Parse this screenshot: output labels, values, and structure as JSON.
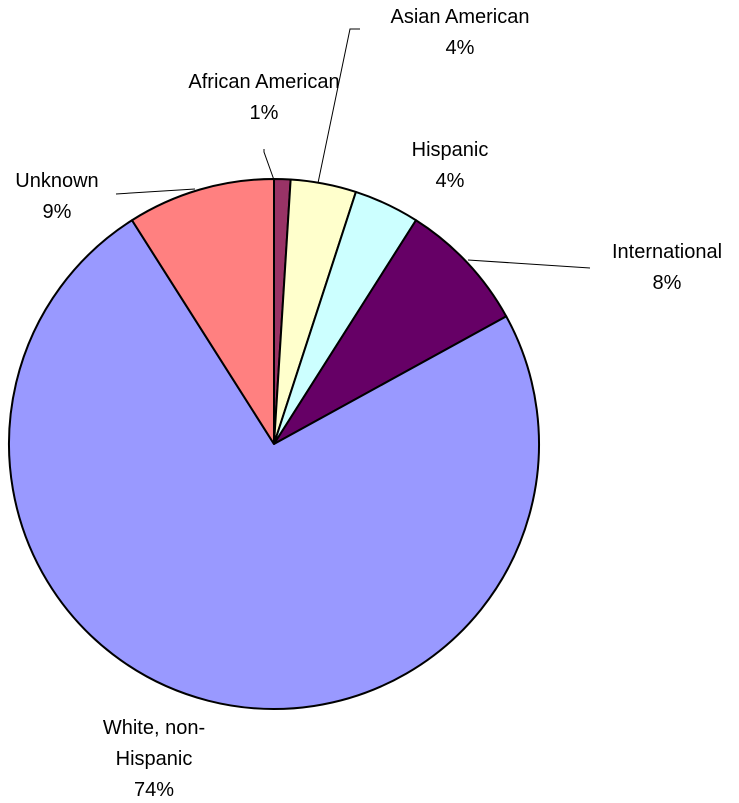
{
  "chart_data": {
    "type": "pie",
    "title": "",
    "start": "12 o'clock",
    "direction": "clockwise",
    "slices": [
      {
        "name": "African American",
        "value": 1,
        "label_lines": [
          "African American",
          "1%"
        ],
        "color": "#993366"
      },
      {
        "name": "Asian American",
        "value": 4,
        "label_lines": [
          "Asian American",
          "4%"
        ],
        "color": "#FFFFCC"
      },
      {
        "name": "Hispanic",
        "value": 4,
        "label_lines": [
          "Hispanic",
          "4%"
        ],
        "color": "#CCFFFF"
      },
      {
        "name": "International",
        "value": 8,
        "label_lines": [
          "International",
          "8%"
        ],
        "color": "#660066"
      },
      {
        "name": "White, non-Hispanic",
        "value": 74,
        "label_lines": [
          "White, non-",
          "Hispanic",
          "74%"
        ],
        "color": "#9999FF"
      },
      {
        "name": "Unknown",
        "value": 9,
        "label_lines": [
          "Unknown",
          "9%"
        ],
        "color": "#FF8080"
      }
    ]
  }
}
